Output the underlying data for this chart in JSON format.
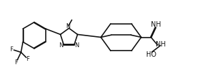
{
  "bg": "#ffffff",
  "lc": "#111111",
  "lw": 1.2,
  "fs": 6.5,
  "figw": 2.9,
  "figh": 1.2,
  "dpi": 100,
  "xlim": [
    0,
    10.5
  ],
  "ylim": [
    0.2,
    4.2
  ]
}
